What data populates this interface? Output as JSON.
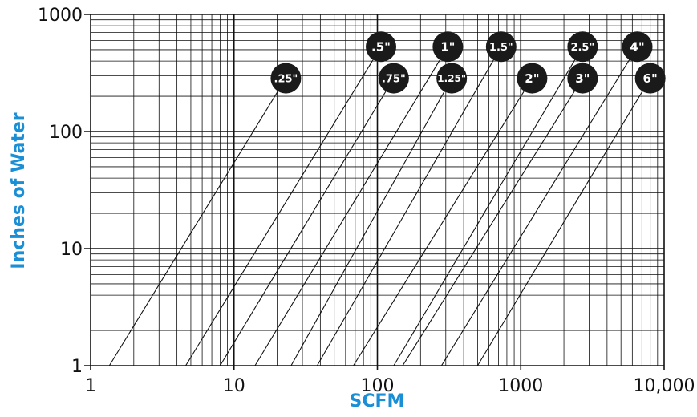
{
  "chart_data": {
    "type": "line",
    "title": "",
    "xlabel": "SCFM",
    "ylabel": "Inches of Water",
    "xscale": "log",
    "yscale": "log",
    "xlim": [
      1,
      10000
    ],
    "ylim": [
      1,
      1000
    ],
    "x_ticks": [
      1,
      10,
      100,
      1000,
      10000
    ],
    "x_tick_labels": [
      "1",
      "10",
      "100",
      "1000",
      "10,000"
    ],
    "y_ticks": [
      1,
      10,
      100,
      1000
    ],
    "y_tick_labels": [
      "1",
      "10",
      "100",
      "1000"
    ],
    "grid": true,
    "colors": {
      "line": "#111111",
      "label": "#1a8fd6",
      "badge": "#1a1a1a",
      "badge_text": "#ffffff"
    },
    "series": [
      {
        "name": ".25\"",
        "x": [
          1.35,
          23
        ],
        "y": [
          1,
          285
        ]
      },
      {
        "name": ".5\"",
        "x": [
          4.6,
          106
        ],
        "y": [
          1,
          530
        ]
      },
      {
        "name": ".75\"",
        "x": [
          8.0,
          130
        ],
        "y": [
          1,
          285
        ]
      },
      {
        "name": "1\"",
        "x": [
          14,
          310
        ],
        "y": [
          1,
          530
        ]
      },
      {
        "name": "1.25\"",
        "x": [
          25,
          330
        ],
        "y": [
          1,
          285
        ]
      },
      {
        "name": "1.5\"",
        "x": [
          38,
          730
        ],
        "y": [
          1,
          530
        ]
      },
      {
        "name": "2\"",
        "x": [
          68,
          1200
        ],
        "y": [
          1,
          285
        ]
      },
      {
        "name": "2.5\"",
        "x": [
          130,
          2700
        ],
        "y": [
          1,
          530
        ]
      },
      {
        "name": "3\"",
        "x": [
          150,
          2700
        ],
        "y": [
          1,
          285
        ]
      },
      {
        "name": "4\"",
        "x": [
          280,
          6500
        ],
        "y": [
          1,
          530
        ]
      },
      {
        "name": "6\"",
        "x": [
          500,
          8000
        ],
        "y": [
          1,
          285
        ]
      }
    ]
  }
}
